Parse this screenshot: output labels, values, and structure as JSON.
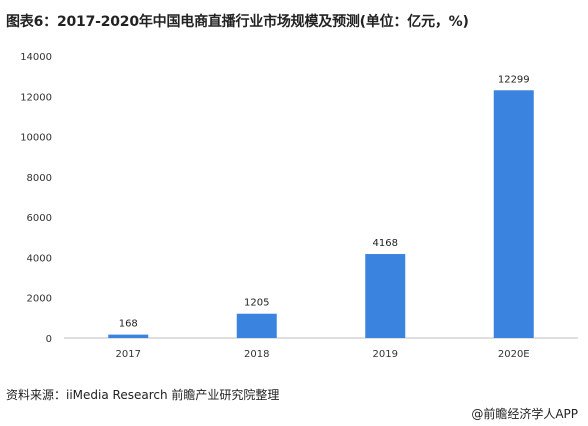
{
  "header": {
    "title": "图表6：2017-2020年中国电商直播行业市场规模及预测(单位：亿元，%)"
  },
  "footer": {
    "source": "资料来源：iiMedia Research 前瞻产业研究院整理",
    "brand": "@前瞻经济学人APP"
  },
  "colors": {
    "bar": "#3a84e0",
    "axis": "#bfbfbf"
  },
  "chart_data": {
    "type": "bar",
    "categories": [
      "2017",
      "2018",
      "2019",
      "2020E"
    ],
    "values": [
      168,
      1205,
      4168,
      12299
    ],
    "value_labels": [
      "168",
      "1205",
      "4168",
      "12299"
    ],
    "ylim": [
      0,
      14000
    ],
    "yticks": [
      "0",
      "2000",
      "4000",
      "6000",
      "8000",
      "10000",
      "12000",
      "14000"
    ],
    "grid": false
  }
}
